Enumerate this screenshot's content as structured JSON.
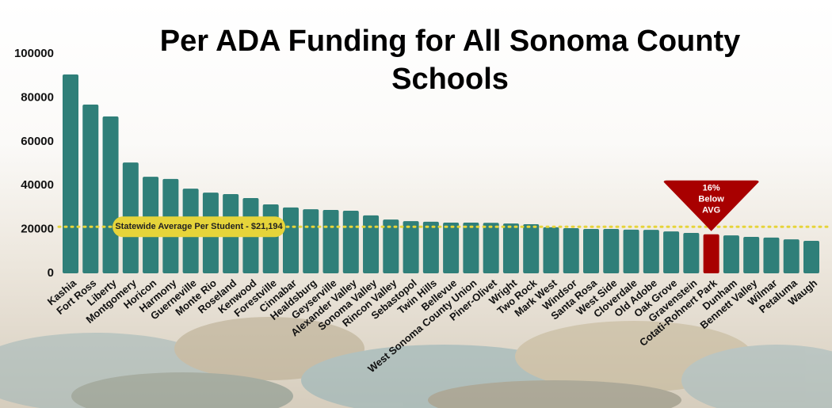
{
  "chart_data": {
    "type": "bar",
    "title": "Per ADA Funding for All Sonoma County Schools",
    "categories": [
      "Kashia",
      "Fort Ross",
      "Liberty",
      "Montgomery",
      "Horicon",
      "Harmony",
      "Guerneville",
      "Monte Rio",
      "Roseland",
      "Kenwood",
      "Forestville",
      "Cinnabar",
      "Healdsburg",
      "Geyserville",
      "Alexander Valley",
      "Sonoma Valley",
      "Rincon Valley",
      "Sebastopol",
      "Twin Hills",
      "Bellevue",
      "West Sonoma County Union",
      "Piner-Olivet",
      "Wright",
      "Two Rock",
      "Mark West",
      "Windsor",
      "Santa Rosa",
      "West Side",
      "Cloverdale",
      "Old Adobe",
      "Oak Grove",
      "Gravenstein",
      "Cotati-Rohnert Park",
      "Dunham",
      "Bennett Valley",
      "Wilmar",
      "Petaluma",
      "Waugh"
    ],
    "values": [
      90600,
      76900,
      71500,
      50500,
      44000,
      43000,
      38600,
      36800,
      36100,
      34300,
      31400,
      30000,
      29200,
      28900,
      28500,
      26400,
      24500,
      23800,
      23500,
      23100,
      23100,
      23000,
      22700,
      22400,
      21000,
      20600,
      20200,
      20200,
      19900,
      19800,
      19100,
      18400,
      17800,
      17300,
      16600,
      16300,
      15500,
      14800
    ],
    "color": "#2f7f79",
    "highlight": {
      "category": "Cotati-Rohnert Park",
      "color": "#a80000"
    },
    "ylim": [
      0,
      100000
    ],
    "yticks": [
      0,
      20000,
      40000,
      60000,
      80000,
      100000
    ],
    "reference_line": {
      "value": 21194,
      "label": "Statewide Average Per Student - $21,194",
      "color": "#e6d43a"
    },
    "annotation": {
      "lines": [
        "16%",
        "Below",
        "AVG"
      ],
      "color": "#a80000"
    }
  }
}
